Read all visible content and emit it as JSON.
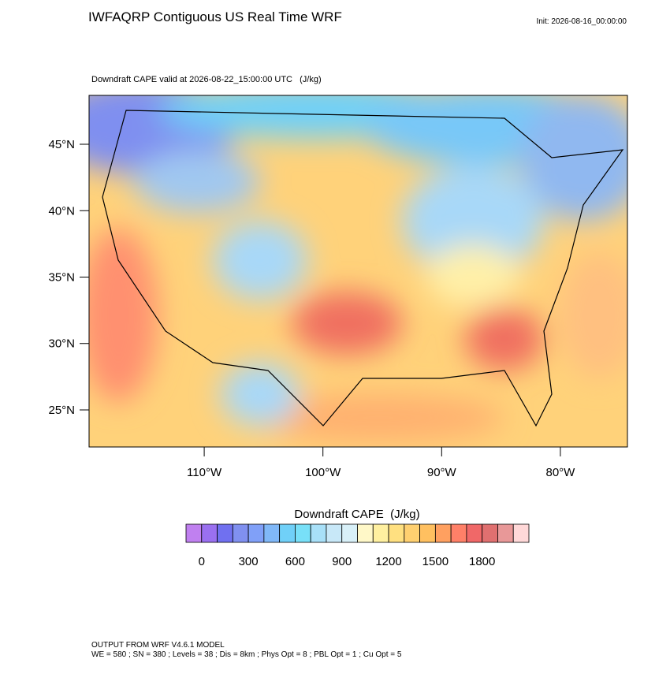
{
  "header": {
    "title": "IWFAQRP Contiguous US Real Time WRF",
    "init": "Init: 2026-08-16_00:00:00"
  },
  "map": {
    "subtitle": "Downdraft CAPE valid at 2026-08-22_15:00:00 UTC   (J/kg)",
    "xlim": [
      -119.7,
      -74.35
    ],
    "ylim": [
      22.21,
      48.68
    ],
    "xticks": [
      {
        "value": -110,
        "label": "110°W"
      },
      {
        "value": -100,
        "label": "100°W"
      },
      {
        "value": -90,
        "label": "90°W"
      },
      {
        "value": -80,
        "label": "80°W"
      }
    ],
    "yticks": [
      {
        "value": 25,
        "label": "25°N"
      },
      {
        "value": 30,
        "label": "30°N"
      },
      {
        "value": 35,
        "label": "35°N"
      },
      {
        "value": 40,
        "label": "40°N"
      },
      {
        "value": 45,
        "label": "45°N"
      }
    ]
  },
  "colorbar": {
    "title": "Downdraft CAPE  (J/kg)",
    "lim": [
      -100,
      2100
    ],
    "ticks": [
      0,
      300,
      600,
      900,
      1200,
      1500,
      1800
    ],
    "colors": [
      "#c080f0",
      "#9a70f0",
      "#7070f0",
      "#8090f0",
      "#80a0f8",
      "#80b8f8",
      "#70d0f8",
      "#78e0f8",
      "#a8e0f8",
      "#c8e8f8",
      "#d8f0f8",
      "#fff8c8",
      "#fff0a0",
      "#ffe080",
      "#ffd070",
      "#ffc060",
      "#ffa060",
      "#ff8068",
      "#f06868",
      "#e07070",
      "#e89898",
      "#ffd8d8"
    ]
  },
  "footer": {
    "lines": [
      "OUTPUT FROM WRF V4.6.1 MODEL",
      "WE = 580 ; SN = 380 ; Levels = 38 ; Dis = 8km ; Phys Opt = 8 ; PBL Opt = 1 ; Cu Opt = 5"
    ]
  }
}
